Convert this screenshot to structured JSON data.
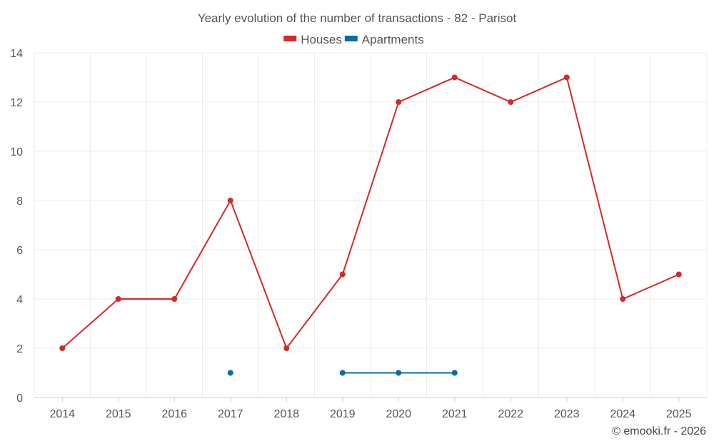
{
  "chart_data": {
    "type": "line",
    "title": "Yearly evolution of the number of transactions - 82 - Parisot",
    "x": [
      "2014",
      "2015",
      "2016",
      "2017",
      "2018",
      "2019",
      "2020",
      "2021",
      "2022",
      "2023",
      "2024",
      "2025"
    ],
    "series": [
      {
        "name": "Houses",
        "color": "#d32a2a",
        "values": [
          2,
          4,
          4,
          8,
          2,
          5,
          12,
          13,
          12,
          13,
          4,
          5
        ]
      },
      {
        "name": "Apartments",
        "color": "#0b6ba3",
        "values": [
          null,
          null,
          null,
          1,
          null,
          1,
          1,
          1,
          null,
          null,
          null,
          null
        ]
      }
    ],
    "ylim": [
      0,
      14
    ],
    "yticks": [
      0,
      2,
      4,
      6,
      8,
      10,
      12,
      14
    ],
    "xlabel": "",
    "ylabel": "",
    "grid": true,
    "legend": "top-center"
  },
  "credit": "© emooki.fr - 2026"
}
